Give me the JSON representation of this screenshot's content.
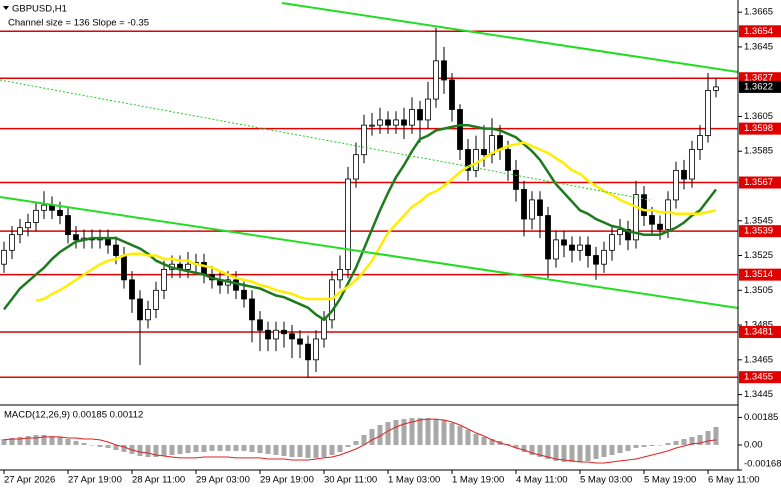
{
  "chart_data": [
    {
      "type": "candlestick",
      "title": "GBPUSD,H1",
      "subtitle": "Channel size = 136 Slope = -0.35",
      "categories": [
        "27 Apr 2026",
        null,
        null,
        null,
        null,
        null,
        null,
        null,
        "27 Apr 19:00",
        null,
        null,
        null,
        null,
        null,
        null,
        null,
        "28 Apr 11:00",
        null,
        null,
        null,
        null,
        null,
        null,
        null,
        "29 Apr 03:00",
        null,
        null,
        null,
        null,
        null,
        null,
        null,
        "29 Apr 19:00",
        null,
        null,
        null,
        null,
        null,
        null,
        null,
        "30 Apr 11:00",
        null,
        null,
        null,
        null,
        null,
        null,
        null,
        "1 May 03:00",
        null,
        null,
        null,
        null,
        null,
        null,
        null,
        "1 May 19:00",
        null,
        null,
        null,
        null,
        null,
        null,
        null,
        "4 May 11:00",
        null,
        null,
        null,
        null,
        null,
        null,
        null,
        "5 May 03:00",
        null,
        null,
        null,
        null,
        null,
        null,
        null,
        "5 May 19:00",
        null,
        null,
        null,
        null,
        null,
        null,
        null,
        "6 May 11:00",
        null
      ],
      "open": [
        1.352,
        1.3528,
        1.3537,
        1.3541,
        1.3544,
        1.3551,
        1.3554,
        1.3551,
        1.3548,
        1.3537,
        1.3534,
        1.3535,
        1.3534,
        1.3535,
        1.3531,
        1.3525,
        1.3511,
        1.35,
        1.3488,
        1.3494,
        1.3505,
        1.3517,
        1.352,
        1.3517,
        1.352,
        1.3521,
        1.3514,
        1.3511,
        1.3508,
        1.3511,
        1.3505,
        1.35,
        1.3488,
        1.3482,
        1.3477,
        1.3482,
        1.348,
        1.3477,
        1.3474,
        1.3465,
        1.3477,
        1.3488,
        1.3511,
        1.3517,
        1.3569,
        1.3583,
        1.36,
        1.36,
        1.3603,
        1.36,
        1.3603,
        1.36,
        1.3609,
        1.3603,
        1.3615,
        1.3637,
        1.3626,
        1.3609,
        1.3586,
        1.3574,
        1.3586,
        1.3583,
        1.3594,
        1.3586,
        1.3574,
        1.3563,
        1.3546,
        1.3557,
        1.3548,
        1.3523,
        1.3534,
        1.3531,
        1.3528,
        1.3531,
        1.3525,
        1.352,
        1.3528,
        1.3537,
        1.354,
        1.3534,
        1.356,
        1.3548,
        1.3543,
        1.354,
        1.3557,
        1.3574,
        1.3569,
        1.3586,
        1.3594,
        1.362
      ],
      "high": [
        1.3533,
        1.3542,
        1.3546,
        1.3549,
        1.3556,
        1.3562,
        1.3559,
        1.3556,
        1.3553,
        1.3542,
        1.354,
        1.354,
        1.354,
        1.354,
        1.3536,
        1.353,
        1.3516,
        1.3505,
        1.3499,
        1.351,
        1.3522,
        1.3525,
        1.3525,
        1.3527,
        1.3526,
        1.3526,
        1.3519,
        1.3516,
        1.3516,
        1.3516,
        1.351,
        1.3505,
        1.3493,
        1.3487,
        1.3487,
        1.3487,
        1.3485,
        1.3482,
        1.3479,
        1.3482,
        1.3493,
        1.3516,
        1.3525,
        1.3576,
        1.359,
        1.3606,
        1.3607,
        1.361,
        1.3608,
        1.3608,
        1.361,
        1.3616,
        1.3614,
        1.3625,
        1.3656,
        1.3645,
        1.363,
        1.3612,
        1.3592,
        1.3594,
        1.36,
        1.3604,
        1.36,
        1.3591,
        1.358,
        1.3568,
        1.3562,
        1.3562,
        1.3553,
        1.3539,
        1.3539,
        1.3536,
        1.3536,
        1.3536,
        1.353,
        1.3533,
        1.3542,
        1.3546,
        1.3545,
        1.3568,
        1.3565,
        1.3553,
        1.3548,
        1.3562,
        1.3579,
        1.358,
        1.3591,
        1.36,
        1.363,
        1.3627
      ],
      "low": [
        1.3515,
        1.3523,
        1.3532,
        1.3536,
        1.3539,
        1.3546,
        1.3546,
        1.3543,
        1.3532,
        1.3529,
        1.3529,
        1.3529,
        1.3529,
        1.3526,
        1.352,
        1.3506,
        1.3492,
        1.3462,
        1.3483,
        1.3489,
        1.35,
        1.3512,
        1.3512,
        1.3512,
        1.3515,
        1.3509,
        1.3506,
        1.3503,
        1.3503,
        1.35,
        1.3495,
        1.3475,
        1.347,
        1.347,
        1.347,
        1.3472,
        1.3466,
        1.3466,
        1.3455,
        1.3458,
        1.3472,
        1.3483,
        1.3506,
        1.3512,
        1.3564,
        1.3578,
        1.3594,
        1.3595,
        1.3595,
        1.3595,
        1.3592,
        1.3595,
        1.359,
        1.3598,
        1.361,
        1.3618,
        1.3602,
        1.358,
        1.3568,
        1.357,
        1.3576,
        1.3578,
        1.358,
        1.3568,
        1.3556,
        1.3536,
        1.354,
        1.3535,
        1.3512,
        1.3518,
        1.3524,
        1.3521,
        1.3522,
        1.3518,
        1.3511,
        1.3515,
        1.3522,
        1.3531,
        1.3528,
        1.3529,
        1.3542,
        1.3537,
        1.3534,
        1.3535,
        1.3552,
        1.3563,
        1.3564,
        1.358,
        1.359,
        1.3616
      ],
      "close": [
        1.3528,
        1.3537,
        1.3541,
        1.3544,
        1.3551,
        1.3554,
        1.3551,
        1.3548,
        1.3537,
        1.3534,
        1.3535,
        1.3534,
        1.3535,
        1.3531,
        1.3525,
        1.3511,
        1.35,
        1.3488,
        1.3494,
        1.3505,
        1.3517,
        1.352,
        1.3517,
        1.352,
        1.3521,
        1.3514,
        1.3511,
        1.3508,
        1.3511,
        1.3505,
        1.35,
        1.3488,
        1.3482,
        1.3477,
        1.3482,
        1.348,
        1.3477,
        1.3474,
        1.3465,
        1.3477,
        1.3488,
        1.3511,
        1.3517,
        1.3569,
        1.3583,
        1.36,
        1.36,
        1.3603,
        1.36,
        1.3603,
        1.36,
        1.3609,
        1.3603,
        1.3615,
        1.3637,
        1.3626,
        1.3609,
        1.3586,
        1.3574,
        1.3586,
        1.3583,
        1.3594,
        1.3586,
        1.3574,
        1.3563,
        1.3546,
        1.3557,
        1.3548,
        1.3523,
        1.3534,
        1.3531,
        1.3528,
        1.3531,
        1.3525,
        1.352,
        1.3528,
        1.3537,
        1.354,
        1.3534,
        1.356,
        1.3548,
        1.3543,
        1.354,
        1.3557,
        1.3574,
        1.3569,
        1.3586,
        1.3594,
        1.362,
        1.3622
      ],
      "up_color": "#ffffff",
      "down_color": "#000000",
      "series": [
        {
          "color": "#1e7a1e",
          "values": [
            1.3494,
            1.35,
            1.3506,
            1.351,
            1.3514,
            1.3518,
            1.3523,
            1.3527,
            1.353,
            1.3533,
            1.3534,
            1.3535,
            1.3535,
            1.3535,
            1.3535,
            1.3533,
            1.3531,
            1.3529,
            1.3526,
            1.3522,
            1.352,
            1.3518,
            1.3517,
            1.3516,
            1.3515,
            1.3514,
            1.3512,
            1.3511,
            1.351,
            1.3509,
            1.3508,
            1.3507,
            1.3506,
            1.3504,
            1.3502,
            1.3501,
            1.3499,
            1.3497,
            1.3495,
            1.3491,
            1.3488,
            1.3493,
            1.35,
            1.3509,
            1.3518,
            1.3529,
            1.354,
            1.3551,
            1.3561,
            1.357,
            1.3577,
            1.3585,
            1.3592,
            1.3594,
            1.3597,
            1.3598,
            1.3599,
            1.36,
            1.36,
            1.3599,
            1.3598,
            1.3598,
            1.3597,
            1.3595,
            1.3593,
            1.3589,
            1.3585,
            1.358,
            1.3573,
            1.3566,
            1.3561,
            1.3556,
            1.3551,
            1.3549,
            1.3546,
            1.3544,
            1.3542,
            1.3541,
            1.3539,
            1.3538,
            1.3537,
            1.3537,
            1.3537,
            1.3539,
            1.3541,
            1.3544,
            1.3548,
            1.3551,
            1.3557,
            1.3563
          ]
        },
        {
          "color": "#ffee00",
          "values": [
            null,
            null,
            null,
            null,
            1.3499,
            1.35,
            1.3503,
            1.3505,
            1.3508,
            1.3511,
            1.3514,
            1.3517,
            1.352,
            1.3522,
            1.3523,
            1.3525,
            1.3526,
            1.3526,
            1.3525,
            1.3525,
            1.3523,
            1.3523,
            1.3522,
            1.3522,
            1.352,
            1.3519,
            1.3518,
            1.3516,
            1.3514,
            1.3512,
            1.3511,
            1.351,
            1.3508,
            1.3507,
            1.3505,
            1.3504,
            1.3503,
            1.3501,
            1.35,
            1.35,
            1.35,
            1.35,
            1.3504,
            1.3507,
            1.3511,
            1.3516,
            1.3522,
            1.353,
            1.3538,
            1.3543,
            1.3548,
            1.3553,
            1.3556,
            1.356,
            1.3562,
            1.3565,
            1.3569,
            1.3573,
            1.3576,
            1.3578,
            1.3581,
            1.3584,
            1.3586,
            1.3588,
            1.3589,
            1.359,
            1.3588,
            1.3586,
            1.3584,
            1.3581,
            1.3578,
            1.3574,
            1.3572,
            1.3568,
            1.3565,
            1.3562,
            1.356,
            1.3557,
            1.3555,
            1.3553,
            1.3551,
            1.3551,
            1.355,
            1.355,
            1.3549,
            1.3549,
            1.3549,
            1.3549,
            1.355,
            1.3551
          ]
        }
      ],
      "levels": [
        1.3654,
        1.3627,
        1.3598,
        1.3567,
        1.3539,
        1.3514,
        1.3481,
        1.3455
      ],
      "level_color": "#e00000",
      "last": 1.3622,
      "ylim": [
        1.3439,
        1.3672
      ],
      "yticks": [
        1.3665,
        1.3645,
        1.3605,
        1.3585,
        1.3545,
        1.3525,
        1.3505,
        1.3485,
        1.3465,
        1.3445
      ]
    },
    {
      "type": "macd",
      "title": "MACD(12,26,9) 0.00185 0.00112",
      "color": "#a8a8a8",
      "values": [
        0.0004,
        0.00047,
        0.00054,
        0.0006,
        0.00067,
        0.00067,
        0.0006,
        0.00054,
        0.0004,
        0.00027,
        0.00013,
        0,
        -0.00013,
        -0.0002,
        -0.00034,
        -0.00047,
        -0.0006,
        -0.00074,
        -0.00081,
        -0.00081,
        -0.00074,
        -0.00067,
        -0.0006,
        -0.00054,
        -0.00047,
        -0.00047,
        -0.0004,
        -0.0004,
        -0.0004,
        -0.0004,
        -0.0004,
        -0.00047,
        -0.00054,
        -0.0006,
        -0.00067,
        -0.00074,
        -0.00081,
        -0.00081,
        -0.00087,
        -0.00087,
        -0.00081,
        -0.00067,
        -0.00047,
        -0.00013,
        0.00027,
        0.00067,
        0.00107,
        0.00134,
        0.00154,
        0.00168,
        0.00174,
        0.00181,
        0.00181,
        0.00181,
        0.00174,
        0.00168,
        0.00148,
        0.00127,
        0.00101,
        0.00074,
        0.00054,
        0.0004,
        0.00027,
        7e-05,
        -0.0002,
        -0.00047,
        -0.00067,
        -0.00081,
        -0.00094,
        -0.00107,
        -0.00114,
        -0.00114,
        -0.00114,
        -0.00107,
        -0.00094,
        -0.00081,
        -0.00067,
        -0.00054,
        -0.0004,
        -0.0002,
        -0.00013,
        -7e-05,
        0,
        0.00013,
        0.00027,
        0.0004,
        0.00054,
        0.00067,
        0.00094,
        0.00121
      ],
      "series": [
        {
          "color": "#e02020",
          "values": [
            0.00034,
            0.0004,
            0.0004,
            0.00047,
            0.00047,
            0.00054,
            0.00054,
            0.00054,
            0.00047,
            0.00047,
            0.0004,
            0.0004,
            0.00034,
            0.0002,
            0,
            -0.00013,
            -0.00034,
            -0.00047,
            -0.00054,
            -0.00067,
            -0.00074,
            -0.00081,
            -0.00087,
            -0.00087,
            -0.00087,
            -0.00081,
            -0.00081,
            -0.00081,
            -0.00081,
            -0.00087,
            -0.00087,
            -0.00087,
            -0.00087,
            -0.00094,
            -0.00094,
            -0.00094,
            -0.00101,
            -0.00101,
            -0.00101,
            -0.00094,
            -0.00087,
            -0.00081,
            -0.00067,
            -0.00047,
            -0.00027,
            0,
            0.00034,
            0.0006,
            0.00094,
            0.00121,
            0.00141,
            0.00154,
            0.00168,
            0.00174,
            0.00174,
            0.00168,
            0.00154,
            0.00134,
            0.00107,
            0.00081,
            0.0006,
            0.00034,
            0.00013,
            0,
            -0.0002,
            -0.00034,
            -0.00054,
            -0.00067,
            -0.00081,
            -0.00094,
            -0.00101,
            -0.00107,
            -0.00114,
            -0.00114,
            -0.00121,
            -0.00121,
            -0.00114,
            -0.00107,
            -0.00101,
            -0.00094,
            -0.00081,
            -0.00067,
            -0.00054,
            -0.0004,
            -0.0002,
            -7e-05,
            7e-05,
            0.00013,
            0.00027,
            0.00034
          ]
        }
      ],
      "ylim": [
        -0.00168,
        0.00255
      ],
      "yticks": [
        0.00185,
        {
          "value": 0,
          "label": "0.00"
        },
        -0.00168
      ]
    }
  ]
}
